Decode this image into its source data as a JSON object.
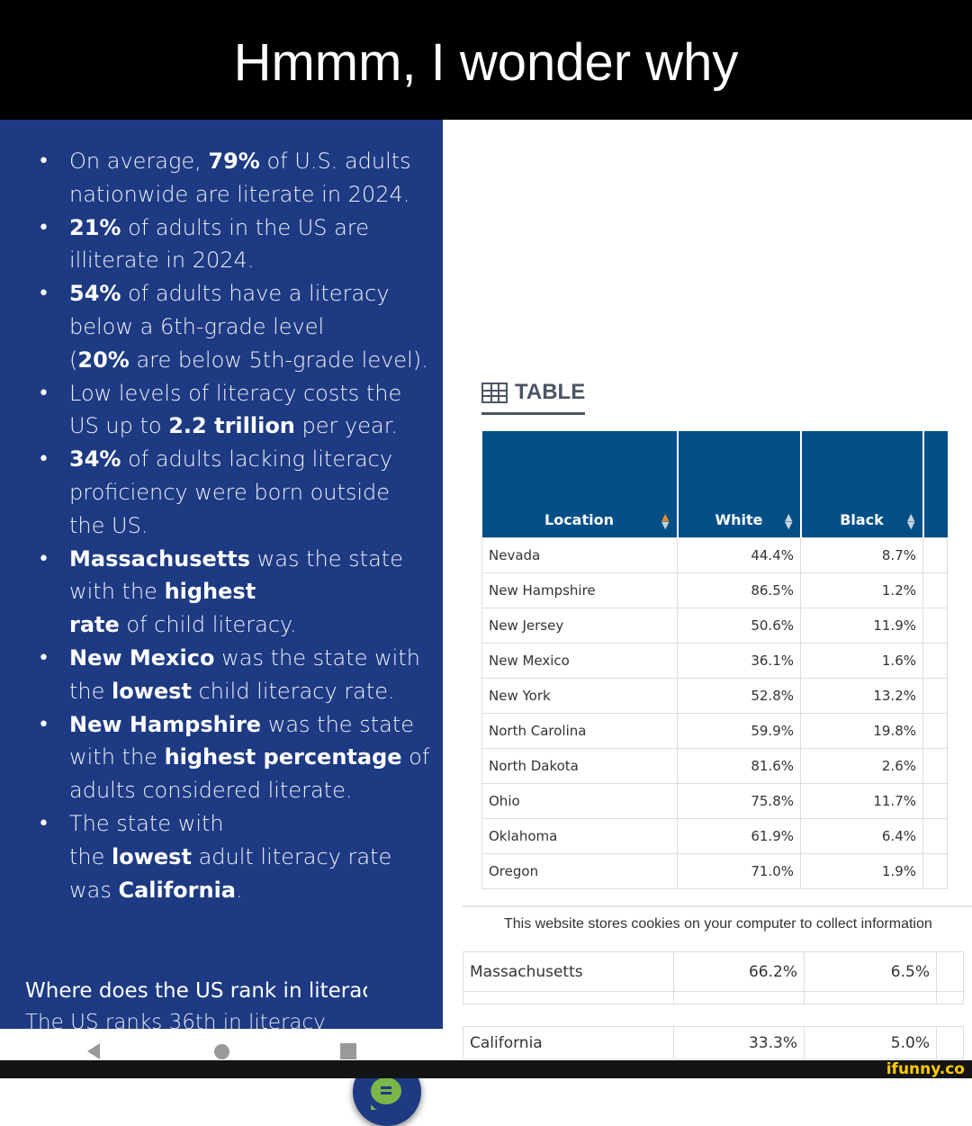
{
  "title": "Hmmm, I wonder why",
  "left_panel": {
    "bullets": [
      [
        [
          [
            "On average, ",
            false
          ],
          [
            "79%",
            true
          ],
          [
            " of U.S. adults",
            false
          ]
        ],
        [
          [
            "nationwide are literate in 2024.",
            false
          ]
        ]
      ],
      [
        [
          [
            "21%",
            true
          ],
          [
            " of adults in the US are",
            false
          ]
        ],
        [
          [
            "illiterate in 2024.",
            false
          ]
        ]
      ],
      [
        [
          [
            "54%",
            true
          ],
          [
            " of adults have a literacy",
            false
          ]
        ],
        [
          [
            "below a 6th-grade level",
            false
          ]
        ],
        [
          [
            "(",
            false
          ],
          [
            "20%",
            true
          ],
          [
            " are below 5th-grade level).",
            false
          ]
        ]
      ],
      [
        [
          [
            "Low levels of literacy costs the",
            false
          ]
        ],
        [
          [
            "US up to ",
            false
          ],
          [
            "2.2 trillion",
            true
          ],
          [
            " per year.",
            false
          ]
        ]
      ],
      [
        [
          [
            "34%",
            true
          ],
          [
            " of adults lacking literacy",
            false
          ]
        ],
        [
          [
            "proficiency were born outside",
            false
          ]
        ],
        [
          [
            "the US.",
            false
          ]
        ]
      ],
      [
        [
          [
            "Massachusetts",
            true
          ],
          [
            " was the state",
            false
          ]
        ],
        [
          [
            "with the ",
            false
          ],
          [
            "highest",
            true
          ]
        ],
        [
          [
            "rate",
            true
          ],
          [
            " of child literacy.",
            false
          ]
        ]
      ],
      [
        [
          [
            "New Mexico",
            true
          ],
          [
            " was the state with",
            false
          ]
        ],
        [
          [
            "the ",
            false
          ],
          [
            "lowest",
            true
          ],
          [
            " child literacy rate.",
            false
          ]
        ]
      ],
      [
        [
          [
            "New Hampshire",
            true
          ],
          [
            " was the state",
            false
          ]
        ],
        [
          [
            "with the ",
            false
          ],
          [
            "highest percentage",
            true
          ],
          [
            " of",
            false
          ]
        ],
        [
          [
            "adults considered literate.",
            false
          ]
        ]
      ],
      [
        [
          [
            "The state with",
            false
          ]
        ],
        [
          [
            "the ",
            false
          ],
          [
            "lowest",
            true
          ],
          [
            " adult literacy rate",
            false
          ]
        ],
        [
          [
            "was ",
            false
          ],
          [
            "California",
            true
          ],
          [
            ".",
            false
          ]
        ]
      ]
    ],
    "faq_question": "Where does the US rank in literacy?",
    "faq_answer": "The US ranks 36th in literacy"
  },
  "table_tab": "TABLE",
  "table": {
    "headers": [
      "Location",
      "White",
      "Black"
    ],
    "rows": [
      [
        "Nevada",
        "44.4%",
        "8.7%"
      ],
      [
        "New Hampshire",
        "86.5%",
        "1.2%"
      ],
      [
        "New Jersey",
        "50.6%",
        "11.9%"
      ],
      [
        "New Mexico",
        "36.1%",
        "1.6%"
      ],
      [
        "New York",
        "52.8%",
        "13.2%"
      ],
      [
        "North Carolina",
        "59.9%",
        "19.8%"
      ],
      [
        "North Dakota",
        "81.6%",
        "2.6%"
      ],
      [
        "Ohio",
        "75.8%",
        "11.7%"
      ],
      [
        "Oklahoma",
        "61.9%",
        "6.4%"
      ],
      [
        "Oregon",
        "71.0%",
        "1.9%"
      ]
    ]
  },
  "cookie_notice": "This website stores cookies on your computer to collect information",
  "extra_rows": [
    [
      "Massachusetts",
      "66.2%",
      "6.5%"
    ],
    [
      "California",
      "33.3%",
      "5.0%"
    ]
  ],
  "watermark": "ifunny.co",
  "colors": {
    "panel": "#1d3a83",
    "table_header": "#024f87",
    "chat": "#7ab648"
  }
}
